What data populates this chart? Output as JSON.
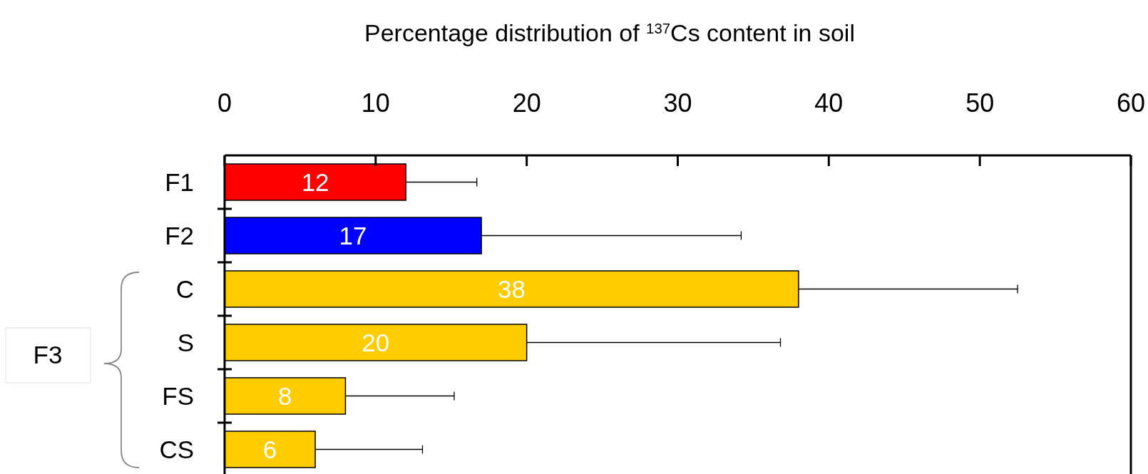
{
  "chart_data": {
    "type": "bar",
    "orientation": "horizontal",
    "xlabel": "Percentage distribution of $^{137}$Cs content in soil",
    "categories": [
      "F1",
      "F2",
      "C",
      "S",
      "FS",
      "CS"
    ],
    "values": [
      12,
      17,
      38,
      20,
      8,
      6
    ],
    "colors": [
      "#ff0000",
      "#0000ff",
      "#ffcc00",
      "#ffcc00",
      "#ffcc00",
      "#ffcc00"
    ],
    "errors": [
      [
        12,
        16.7
      ],
      [
        17,
        34.2
      ],
      [
        38,
        52.5
      ],
      [
        20,
        36.8
      ],
      [
        8,
        15.2
      ],
      [
        6,
        13.1
      ]
    ],
    "xlim": [
      0,
      60
    ],
    "xticks": [
      0,
      10,
      20,
      30,
      40,
      50,
      60
    ],
    "data_labels": true,
    "grid": false,
    "annotations": [
      "F3"
    ]
  }
}
